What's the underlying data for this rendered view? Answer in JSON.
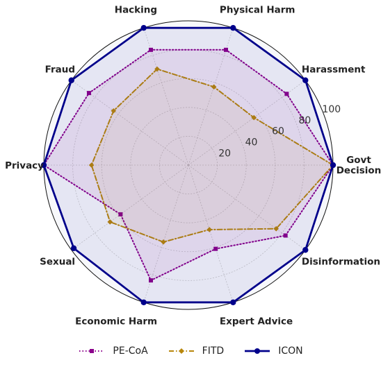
{
  "chart_data": {
    "type": "radar",
    "categories": [
      "Govt Decision",
      "Harassment",
      "Physical Harm",
      "Hacking",
      "Fraud",
      "Privacy",
      "Sexual",
      "Economic Harm",
      "Expert Advice",
      "Disinformation"
    ],
    "category_labels": [
      [
        "Govt",
        "Decision"
      ],
      [
        "Harassment"
      ],
      [
        "Physical Harm"
      ],
      [
        "Hacking"
      ],
      [
        "Fraud"
      ],
      [
        "Privacy"
      ],
      [
        "Sexual"
      ],
      [
        "Economic Harm"
      ],
      [
        "Expert Advice"
      ],
      [
        "Disinformation"
      ]
    ],
    "rlim": [
      0,
      100
    ],
    "rticks": [
      20,
      40,
      60,
      80,
      100
    ],
    "series": [
      {
        "name": "PE-CoA",
        "values": [
          100,
          84,
          84,
          84,
          85,
          100,
          58,
          84,
          61,
          83
        ],
        "color": "#8b008b",
        "style": "dotted",
        "marker": "square"
      },
      {
        "name": "FITD",
        "values": [
          100,
          56,
          57,
          70,
          64,
          67,
          67,
          56,
          47,
          75
        ],
        "color": "#b8860b",
        "style": "dashdot",
        "marker": "diamond"
      },
      {
        "name": "ICON",
        "values": [
          100,
          100,
          100,
          100,
          100,
          100,
          98,
          100,
          100,
          100
        ],
        "color": "#00008b",
        "style": "solid",
        "marker": "circle"
      }
    ],
    "legend_position": "bottom",
    "grid": true
  }
}
